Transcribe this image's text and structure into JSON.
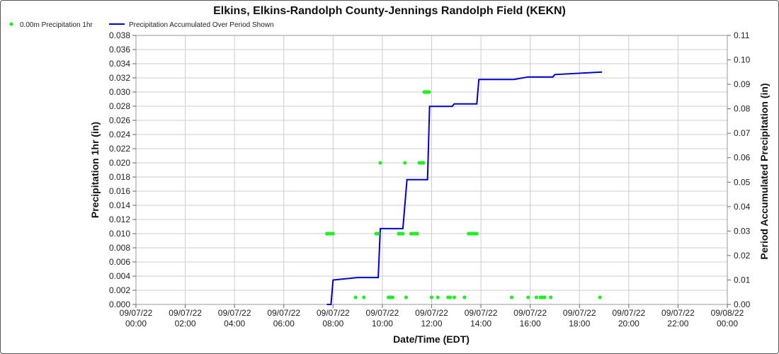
{
  "chart_data": {
    "type": "line",
    "title": "Elkins, Elkins-Randolph County-Jennings Randolph Field (KEKN)",
    "xlabel": "Date/Time (EDT)",
    "ylabel_left": "Precipitation 1hr (in)",
    "ylabel_right": "Period Accumulated Precipitation (in)",
    "legend": [
      "0.00m Precipitation 1hr",
      "Precipitation Accumulated Over Period Shown"
    ],
    "legend_placement": "top-left",
    "grid": true,
    "colors": {
      "scatter": "#22ee22",
      "line": "#0000cc",
      "grid": "#cccccc"
    },
    "x_ticks": [
      {
        "date": "09/07/22",
        "time": "00:00"
      },
      {
        "date": "09/07/22",
        "time": "02:00"
      },
      {
        "date": "09/07/22",
        "time": "04:00"
      },
      {
        "date": "09/07/22",
        "time": "06:00"
      },
      {
        "date": "09/07/22",
        "time": "08:00"
      },
      {
        "date": "09/07/22",
        "time": "10:00"
      },
      {
        "date": "09/07/22",
        "time": "12:00"
      },
      {
        "date": "09/07/22",
        "time": "14:00"
      },
      {
        "date": "09/07/22",
        "time": "16:00"
      },
      {
        "date": "09/07/22",
        "time": "18:00"
      },
      {
        "date": "09/07/22",
        "time": "20:00"
      },
      {
        "date": "09/07/22",
        "time": "22:00"
      },
      {
        "date": "09/08/22",
        "time": "00:00"
      }
    ],
    "x_range": [
      "09/07/22 00:00",
      "09/08/22 00:00"
    ],
    "y_left_ticks": [
      "0.000",
      "0.002",
      "0.004",
      "0.006",
      "0.008",
      "0.010",
      "0.012",
      "0.014",
      "0.016",
      "0.018",
      "0.020",
      "0.022",
      "0.024",
      "0.026",
      "0.028",
      "0.030",
      "0.032",
      "0.034",
      "0.036",
      "0.038"
    ],
    "y_left_range": [
      0,
      0.038
    ],
    "y_right_ticks": [
      "0.00",
      "0.01",
      "0.02",
      "0.03",
      "0.04",
      "0.05",
      "0.06",
      "0.07",
      "0.08",
      "0.09",
      "0.10",
      "0.11"
    ],
    "y_right_range": [
      0,
      0.11
    ],
    "series": [
      {
        "name": "0.00m Precipitation 1hr",
        "kind": "scatter",
        "axis": "left",
        "points": [
          [
            "09/07/22 07:45",
            0.01
          ],
          [
            "09/07/22 07:50",
            0.01
          ],
          [
            "09/07/22 07:55",
            0.01
          ],
          [
            "09/07/22 08:00",
            0.01
          ],
          [
            "09/07/22 08:55",
            0.001
          ],
          [
            "09/07/22 09:15",
            0.001
          ],
          [
            "09/07/22 09:45",
            0.01
          ],
          [
            "09/07/22 09:50",
            0.01
          ],
          [
            "09/07/22 09:55",
            0.02
          ],
          [
            "09/07/22 10:15",
            0.001
          ],
          [
            "09/07/22 10:20",
            0.001
          ],
          [
            "09/07/22 10:25",
            0.001
          ],
          [
            "09/07/22 10:40",
            0.01
          ],
          [
            "09/07/22 10:45",
            0.01
          ],
          [
            "09/07/22 10:50",
            0.01
          ],
          [
            "09/07/22 10:55",
            0.02
          ],
          [
            "09/07/22 10:58",
            0.001
          ],
          [
            "09/07/22 11:10",
            0.01
          ],
          [
            "09/07/22 11:15",
            0.01
          ],
          [
            "09/07/22 11:20",
            0.01
          ],
          [
            "09/07/22 11:25",
            0.01
          ],
          [
            "09/07/22 11:30",
            0.02
          ],
          [
            "09/07/22 11:35",
            0.02
          ],
          [
            "09/07/22 11:40",
            0.02
          ],
          [
            "09/07/22 11:42",
            0.03
          ],
          [
            "09/07/22 11:46",
            0.03
          ],
          [
            "09/07/22 11:50",
            0.03
          ],
          [
            "09/07/22 11:54",
            0.03
          ],
          [
            "09/07/22 12:00",
            0.001
          ],
          [
            "09/07/22 12:15",
            0.001
          ],
          [
            "09/07/22 12:40",
            0.001
          ],
          [
            "09/07/22 12:45",
            0.001
          ],
          [
            "09/07/22 12:55",
            0.001
          ],
          [
            "09/07/22 13:20",
            0.001
          ],
          [
            "09/07/22 13:30",
            0.01
          ],
          [
            "09/07/22 13:35",
            0.01
          ],
          [
            "09/07/22 13:40",
            0.01
          ],
          [
            "09/07/22 13:45",
            0.01
          ],
          [
            "09/07/22 13:50",
            0.01
          ],
          [
            "09/07/22 15:15",
            0.001
          ],
          [
            "09/07/22 15:55",
            0.001
          ],
          [
            "09/07/22 16:15",
            0.001
          ],
          [
            "09/07/22 16:25",
            0.001
          ],
          [
            "09/07/22 16:30",
            0.001
          ],
          [
            "09/07/22 16:35",
            0.001
          ],
          [
            "09/07/22 16:50",
            0.001
          ],
          [
            "09/07/22 18:50",
            0.001
          ]
        ]
      },
      {
        "name": "Precipitation Accumulated Over Period Shown",
        "kind": "line",
        "axis": "right",
        "points": [
          [
            "09/07/22 07:45",
            0.0
          ],
          [
            "09/07/22 07:55",
            0.0
          ],
          [
            "09/07/22 08:00",
            0.01
          ],
          [
            "09/07/22 09:00",
            0.011
          ],
          [
            "09/07/22 09:50",
            0.011
          ],
          [
            "09/07/22 09:55",
            0.031
          ],
          [
            "09/07/22 10:50",
            0.031
          ],
          [
            "09/07/22 11:00",
            0.051
          ],
          [
            "09/07/22 11:50",
            0.051
          ],
          [
            "09/07/22 11:55",
            0.081
          ],
          [
            "09/07/22 12:50",
            0.081
          ],
          [
            "09/07/22 12:55",
            0.082
          ],
          [
            "09/07/22 13:50",
            0.082
          ],
          [
            "09/07/22 13:55",
            0.092
          ],
          [
            "09/07/22 15:20",
            0.092
          ],
          [
            "09/07/22 15:55",
            0.093
          ],
          [
            "09/07/22 16:55",
            0.093
          ],
          [
            "09/07/22 17:00",
            0.094
          ],
          [
            "09/07/22 18:55",
            0.095
          ]
        ]
      }
    ]
  }
}
